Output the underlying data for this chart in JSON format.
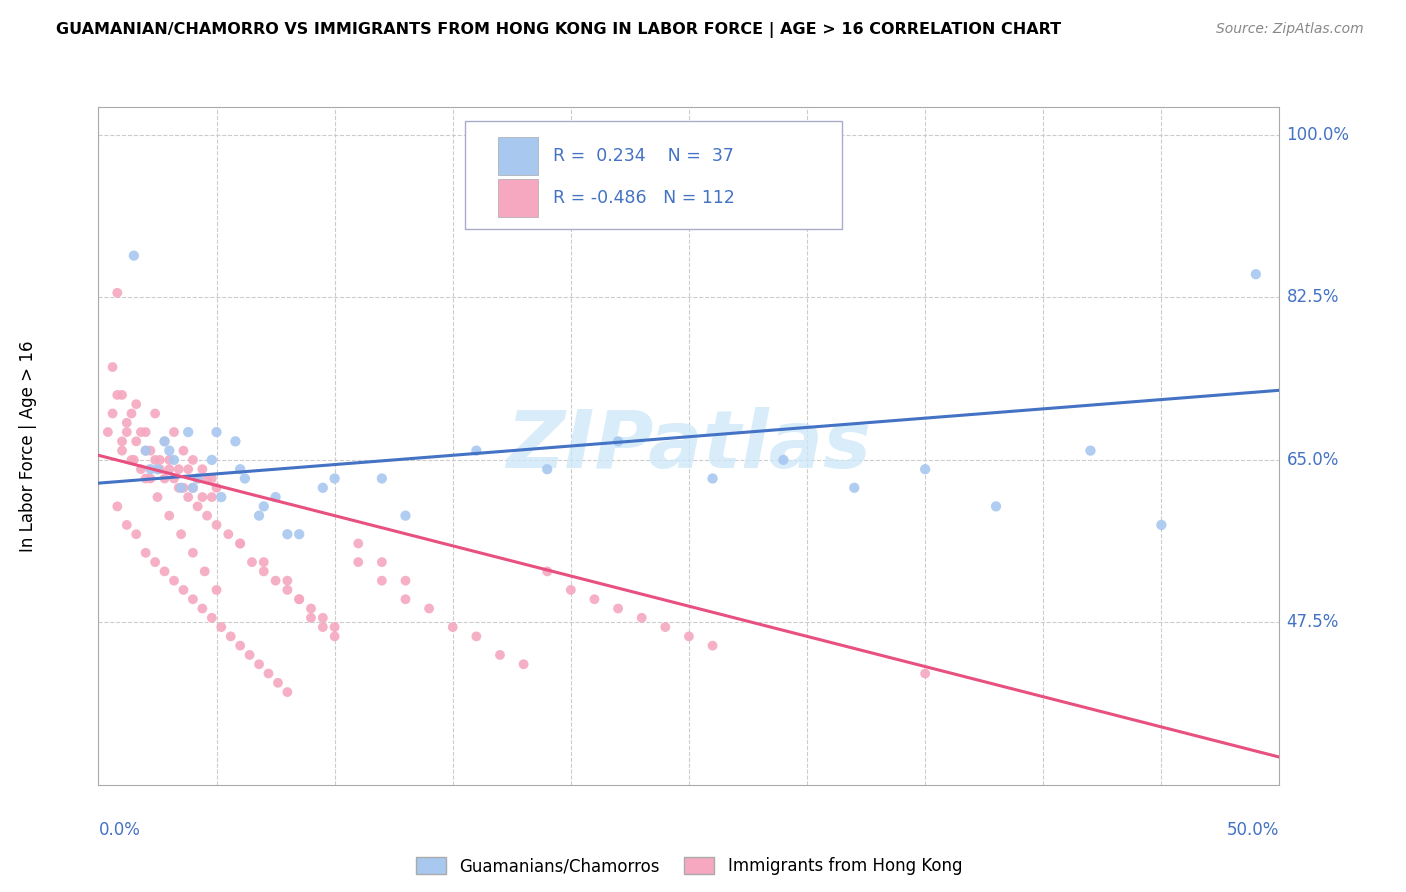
{
  "title": "GUAMANIAN/CHAMORRO VS IMMIGRANTS FROM HONG KONG IN LABOR FORCE | AGE > 16 CORRELATION CHART",
  "source": "Source: ZipAtlas.com",
  "ylabel": "In Labor Force | Age > 16",
  "legend_label1": "Guamanians/Chamorros",
  "legend_label2": "Immigrants from Hong Kong",
  "R1": 0.234,
  "N1": 37,
  "R2": -0.486,
  "N2": 112,
  "color_blue": "#a8c8f0",
  "color_pink": "#f5a8c0",
  "line_blue": "#4472c4",
  "line_pink": "#e85080",
  "xmin": 0.0,
  "xmax": 0.5,
  "ymin": 0.3,
  "ymax": 1.03,
  "ytick_vals": [
    0.475,
    0.65,
    0.825,
    1.0
  ],
  "ytick_labels": [
    "47.5%",
    "65.0%",
    "82.5%",
    "100.0%"
  ],
  "blue_line_y0": 0.625,
  "blue_line_y1": 0.725,
  "pink_line_y0": 0.655,
  "pink_line_y1": 0.33,
  "blue_scatter_x": [
    0.02,
    0.025,
    0.028,
    0.032,
    0.035,
    0.038,
    0.042,
    0.048,
    0.052,
    0.058,
    0.062,
    0.068,
    0.075,
    0.085,
    0.095,
    0.12,
    0.16,
    0.19,
    0.22,
    0.26,
    0.29,
    0.32,
    0.35,
    0.38,
    0.42,
    0.45,
    0.49,
    0.015,
    0.022,
    0.03,
    0.04,
    0.05,
    0.06,
    0.07,
    0.08,
    0.1,
    0.13
  ],
  "blue_scatter_y": [
    0.66,
    0.64,
    0.67,
    0.65,
    0.62,
    0.68,
    0.63,
    0.65,
    0.61,
    0.67,
    0.63,
    0.59,
    0.61,
    0.57,
    0.62,
    0.63,
    0.66,
    0.64,
    0.67,
    0.63,
    0.65,
    0.62,
    0.64,
    0.6,
    0.66,
    0.58,
    0.85,
    0.87,
    0.64,
    0.66,
    0.62,
    0.68,
    0.64,
    0.6,
    0.57,
    0.63,
    0.59
  ],
  "pink_scatter_x": [
    0.004,
    0.006,
    0.008,
    0.01,
    0.012,
    0.014,
    0.016,
    0.018,
    0.02,
    0.022,
    0.024,
    0.026,
    0.028,
    0.03,
    0.032,
    0.034,
    0.036,
    0.038,
    0.04,
    0.042,
    0.044,
    0.046,
    0.048,
    0.05,
    0.008,
    0.012,
    0.016,
    0.02,
    0.024,
    0.028,
    0.032,
    0.036,
    0.04,
    0.044,
    0.048,
    0.006,
    0.01,
    0.014,
    0.018,
    0.022,
    0.026,
    0.03,
    0.034,
    0.038,
    0.042,
    0.046,
    0.05,
    0.055,
    0.06,
    0.065,
    0.07,
    0.075,
    0.08,
    0.085,
    0.09,
    0.095,
    0.1,
    0.11,
    0.12,
    0.13,
    0.008,
    0.012,
    0.016,
    0.02,
    0.024,
    0.028,
    0.032,
    0.036,
    0.04,
    0.044,
    0.048,
    0.052,
    0.056,
    0.06,
    0.064,
    0.068,
    0.072,
    0.076,
    0.08,
    0.085,
    0.09,
    0.095,
    0.1,
    0.11,
    0.12,
    0.13,
    0.14,
    0.15,
    0.16,
    0.17,
    0.18,
    0.19,
    0.2,
    0.21,
    0.22,
    0.23,
    0.24,
    0.25,
    0.26,
    0.01,
    0.015,
    0.02,
    0.025,
    0.03,
    0.035,
    0.04,
    0.045,
    0.05,
    0.06,
    0.07,
    0.08,
    0.35
  ],
  "pink_scatter_y": [
    0.68,
    0.7,
    0.83,
    0.66,
    0.68,
    0.65,
    0.67,
    0.64,
    0.66,
    0.63,
    0.65,
    0.64,
    0.63,
    0.65,
    0.63,
    0.64,
    0.62,
    0.64,
    0.62,
    0.63,
    0.61,
    0.63,
    0.61,
    0.62,
    0.72,
    0.69,
    0.71,
    0.68,
    0.7,
    0.67,
    0.68,
    0.66,
    0.65,
    0.64,
    0.63,
    0.75,
    0.72,
    0.7,
    0.68,
    0.66,
    0.65,
    0.64,
    0.62,
    0.61,
    0.6,
    0.59,
    0.58,
    0.57,
    0.56,
    0.54,
    0.53,
    0.52,
    0.51,
    0.5,
    0.49,
    0.48,
    0.47,
    0.56,
    0.54,
    0.52,
    0.6,
    0.58,
    0.57,
    0.55,
    0.54,
    0.53,
    0.52,
    0.51,
    0.5,
    0.49,
    0.48,
    0.47,
    0.46,
    0.45,
    0.44,
    0.43,
    0.42,
    0.41,
    0.4,
    0.5,
    0.48,
    0.47,
    0.46,
    0.54,
    0.52,
    0.5,
    0.49,
    0.47,
    0.46,
    0.44,
    0.43,
    0.53,
    0.51,
    0.5,
    0.49,
    0.48,
    0.47,
    0.46,
    0.45,
    0.67,
    0.65,
    0.63,
    0.61,
    0.59,
    0.57,
    0.55,
    0.53,
    0.51,
    0.56,
    0.54,
    0.52,
    0.42
  ]
}
